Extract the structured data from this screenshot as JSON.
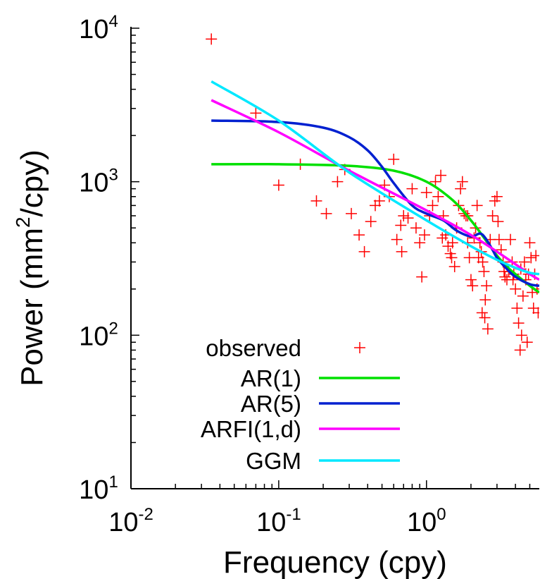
{
  "chart_data": {
    "type": "line",
    "title": "",
    "xlabel": "Frequency (cpy)",
    "ylabel_prefix": "Power (mm",
    "ylabel_sup": "2",
    "ylabel_suffix": "/cpy)",
    "xscale": "log",
    "yscale": "log",
    "xlim": [
      0.01,
      5.8
    ],
    "ylim": [
      10,
      10000
    ],
    "x_ticks": [
      {
        "value": 0.01,
        "base": "10",
        "exp": "-2"
      },
      {
        "value": 0.1,
        "base": "10",
        "exp": "-1"
      },
      {
        "value": 1,
        "base": "10",
        "exp": "0"
      }
    ],
    "y_ticks": [
      {
        "value": 10,
        "base": "10",
        "exp": "1"
      },
      {
        "value": 100,
        "base": "10",
        "exp": "2"
      },
      {
        "value": 1000,
        "base": "10",
        "exp": "3"
      },
      {
        "value": 10000,
        "base": "10",
        "exp": "4"
      }
    ],
    "grid": false,
    "legend_position": "bottom-left",
    "observed": {
      "name": "observed",
      "color": "#ff0000",
      "marker": "plus",
      "points": [
        [
          0.035,
          8500
        ],
        [
          0.07,
          2800
        ],
        [
          0.1,
          950
        ],
        [
          0.14,
          1300
        ],
        [
          0.18,
          750
        ],
        [
          0.21,
          620
        ],
        [
          0.25,
          1000
        ],
        [
          0.28,
          1200
        ],
        [
          0.31,
          620
        ],
        [
          0.35,
          450
        ],
        [
          0.38,
          350
        ],
        [
          0.42,
          550
        ],
        [
          0.45,
          700
        ],
        [
          0.48,
          750
        ],
        [
          0.52,
          950
        ],
        [
          0.56,
          800
        ],
        [
          0.6,
          1400
        ],
        [
          0.63,
          420
        ],
        [
          0.67,
          520
        ],
        [
          0.7,
          600
        ],
        [
          0.75,
          580
        ],
        [
          0.8,
          900
        ],
        [
          0.85,
          500
        ],
        [
          0.9,
          400
        ],
        [
          0.93,
          240
        ],
        [
          0.97,
          450
        ],
        [
          1.0,
          850
        ],
        [
          1.05,
          600
        ],
        [
          1.1,
          700
        ],
        [
          1.15,
          1000
        ],
        [
          1.2,
          800
        ],
        [
          1.25,
          1100
        ],
        [
          1.3,
          600
        ],
        [
          1.35,
          450
        ],
        [
          1.4,
          380
        ],
        [
          1.45,
          340
        ],
        [
          1.5,
          400
        ],
        [
          1.55,
          280
        ],
        [
          1.6,
          500
        ],
        [
          1.65,
          700
        ],
        [
          1.7,
          900
        ],
        [
          1.75,
          1000
        ],
        [
          1.8,
          620
        ],
        [
          1.85,
          600
        ],
        [
          1.9,
          400
        ],
        [
          1.95,
          320
        ],
        [
          2.0,
          230
        ],
        [
          2.05,
          210
        ],
        [
          2.1,
          430
        ],
        [
          2.15,
          500
        ],
        [
          2.2,
          700
        ],
        [
          2.25,
          320
        ],
        [
          2.3,
          400
        ],
        [
          2.35,
          350
        ],
        [
          2.4,
          300
        ],
        [
          2.45,
          260
        ],
        [
          2.5,
          170
        ],
        [
          2.55,
          210
        ],
        [
          2.6,
          110
        ],
        [
          2.7,
          420
        ],
        [
          2.8,
          600
        ],
        [
          2.9,
          750
        ],
        [
          3.0,
          800
        ],
        [
          3.05,
          550
        ],
        [
          3.1,
          420
        ],
        [
          3.2,
          360
        ],
        [
          3.3,
          300
        ],
        [
          3.4,
          240
        ],
        [
          3.5,
          230
        ],
        [
          3.6,
          260
        ],
        [
          3.7,
          420
        ],
        [
          3.8,
          300
        ],
        [
          3.9,
          250
        ],
        [
          4.0,
          200
        ],
        [
          4.1,
          150
        ],
        [
          4.2,
          120
        ],
        [
          4.3,
          80
        ],
        [
          4.4,
          100
        ],
        [
          4.5,
          180
        ],
        [
          4.6,
          300
        ],
        [
          4.7,
          230
        ],
        [
          4.8,
          90
        ],
        [
          4.9,
          250
        ],
        [
          5.0,
          400
        ],
        [
          5.1,
          320
        ],
        [
          5.2,
          190
        ],
        [
          5.3,
          150
        ],
        [
          5.4,
          250
        ],
        [
          5.5,
          330
        ],
        [
          5.6,
          200
        ],
        [
          5.7,
          140
        ],
        [
          1.28,
          430
        ],
        [
          1.48,
          320
        ],
        [
          2.38,
          140
        ],
        [
          2.48,
          130
        ],
        [
          1.9,
          600
        ],
        [
          0.68,
          350
        ],
        [
          3.35,
          260
        ],
        [
          3.85,
          230
        ],
        [
          4.35,
          270
        ]
      ]
    },
    "series": [
      {
        "name": "AR(1)",
        "color": "#00e000",
        "x": [
          0.035,
          0.1,
          0.3,
          0.6,
          1.0,
          1.5,
          2.0,
          2.5,
          3.0,
          3.5,
          4.0,
          5.0,
          5.8
        ],
        "y": [
          1300,
          1300,
          1270,
          1180,
          1000,
          760,
          560,
          420,
          330,
          280,
          250,
          210,
          190
        ]
      },
      {
        "name": "AR(5)",
        "color": "#0020d0",
        "x": [
          0.035,
          0.1,
          0.2,
          0.3,
          0.4,
          0.5,
          0.6,
          0.8,
          1.0,
          1.3,
          1.6,
          2.0,
          2.3,
          2.5,
          2.8,
          3.0,
          3.5,
          4.0,
          5.0,
          5.8
        ],
        "y": [
          2500,
          2450,
          2250,
          1950,
          1600,
          1250,
          980,
          700,
          620,
          560,
          480,
          440,
          460,
          430,
          360,
          320,
          270,
          240,
          215,
          210
        ]
      },
      {
        "name": "ARFI(1,d)",
        "color": "#ff00ff",
        "x": [
          0.035,
          0.1,
          0.3,
          1.0,
          2.0,
          3.0,
          4.0,
          5.0,
          5.8
        ],
        "y": [
          3400,
          2100,
          1180,
          650,
          450,
          350,
          290,
          250,
          230
        ]
      },
      {
        "name": "GGM",
        "color": "#00e8ff",
        "x": [
          0.035,
          0.1,
          0.3,
          1.0,
          2.0,
          3.0,
          4.0,
          5.0,
          5.8
        ],
        "y": [
          4500,
          2500,
          1150,
          560,
          380,
          310,
          275,
          255,
          250
        ]
      }
    ]
  }
}
